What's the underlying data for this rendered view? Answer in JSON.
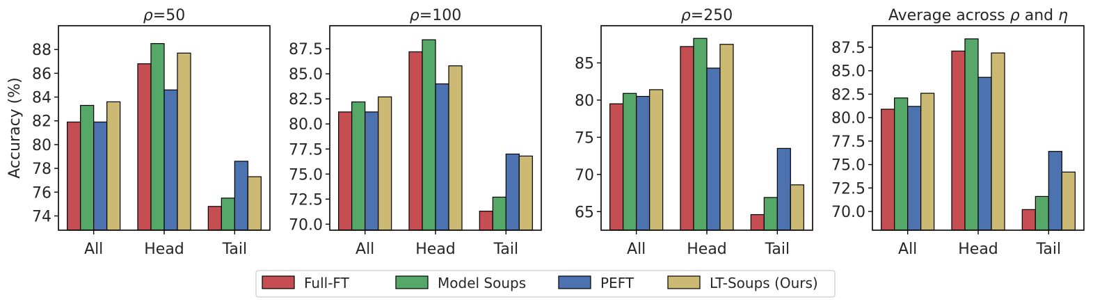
{
  "chart_data": [
    {
      "type": "bar",
      "title_prefix": "ρ",
      "title_suffix": "=50",
      "ylabel": "Accuracy (%)",
      "ylim": [
        72.8,
        90.0
      ],
      "yticks": [
        74,
        76,
        78,
        80,
        82,
        84,
        86,
        88
      ],
      "ytick_labels": [
        "74",
        "76",
        "78",
        "80",
        "82",
        "84",
        "86",
        "88"
      ],
      "categories": [
        "All",
        "Head",
        "Tail"
      ],
      "series": [
        {
          "name": "Full-FT",
          "values": [
            81.9,
            86.8,
            74.8
          ]
        },
        {
          "name": "Model Soups",
          "values": [
            83.3,
            88.5,
            75.5
          ]
        },
        {
          "name": "PEFT",
          "values": [
            81.9,
            84.6,
            78.6
          ]
        },
        {
          "name": "LT-Soups (Ours)",
          "values": [
            83.6,
            87.7,
            77.3
          ]
        }
      ]
    },
    {
      "type": "bar",
      "title_prefix": "ρ",
      "title_suffix": "=100",
      "ylabel": "",
      "ylim": [
        69.4,
        89.8
      ],
      "yticks": [
        70.0,
        72.5,
        75.0,
        77.5,
        80.0,
        82.5,
        85.0,
        87.5
      ],
      "ytick_labels": [
        "70.0",
        "72.5",
        "75.0",
        "77.5",
        "80.0",
        "82.5",
        "85.0",
        "87.5"
      ],
      "categories": [
        "All",
        "Head",
        "Tail"
      ],
      "series": [
        {
          "name": "Full-FT",
          "values": [
            81.2,
            87.2,
            71.3
          ]
        },
        {
          "name": "Model Soups",
          "values": [
            82.2,
            88.4,
            72.7
          ]
        },
        {
          "name": "PEFT",
          "values": [
            81.2,
            84.0,
            77.0
          ]
        },
        {
          "name": "LT-Soups (Ours)",
          "values": [
            82.7,
            85.8,
            76.8
          ]
        }
      ]
    },
    {
      "type": "bar",
      "title_prefix": "ρ",
      "title_suffix": "=250",
      "ylabel": "",
      "ylim": [
        62.5,
        90.0
      ],
      "yticks": [
        65,
        70,
        75,
        80,
        85
      ],
      "ytick_labels": [
        "65",
        "70",
        "75",
        "80",
        "85"
      ],
      "categories": [
        "All",
        "Head",
        "Tail"
      ],
      "series": [
        {
          "name": "Full-FT",
          "values": [
            79.5,
            87.2,
            64.6
          ]
        },
        {
          "name": "Model Soups",
          "values": [
            80.9,
            88.3,
            66.9
          ]
        },
        {
          "name": "PEFT",
          "values": [
            80.5,
            84.3,
            73.5
          ]
        },
        {
          "name": "LT-Soups (Ours)",
          "values": [
            81.4,
            87.5,
            68.6
          ]
        }
      ]
    },
    {
      "type": "bar",
      "title_prefix": "Average across ",
      "title_mid_symbol": "ρ",
      "title_mid_text": " and ",
      "title_end_symbol": "η",
      "ylabel": "",
      "ylim": [
        68.0,
        89.8
      ],
      "yticks": [
        70.0,
        72.5,
        75.0,
        77.5,
        80.0,
        82.5,
        85.0,
        87.5
      ],
      "ytick_labels": [
        "70.0",
        "72.5",
        "75.0",
        "77.5",
        "80.0",
        "82.5",
        "85.0",
        "87.5"
      ],
      "categories": [
        "All",
        "Head",
        "Tail"
      ],
      "series": [
        {
          "name": "Full-FT",
          "values": [
            80.9,
            87.1,
            70.2
          ]
        },
        {
          "name": "Model Soups",
          "values": [
            82.1,
            88.4,
            71.6
          ]
        },
        {
          "name": "PEFT",
          "values": [
            81.2,
            84.3,
            76.4
          ]
        },
        {
          "name": "LT-Soups (Ours)",
          "values": [
            82.6,
            86.9,
            74.2
          ]
        }
      ]
    }
  ],
  "legend": {
    "placement": "bottom-center",
    "items": [
      {
        "label": "Full-FT",
        "color": "#c44e52"
      },
      {
        "label": "Model Soups",
        "color": "#55a868"
      },
      {
        "label": "PEFT",
        "color": "#4c72b0"
      },
      {
        "label": "LT-Soups (Ours)",
        "color": "#ccb974"
      }
    ]
  }
}
